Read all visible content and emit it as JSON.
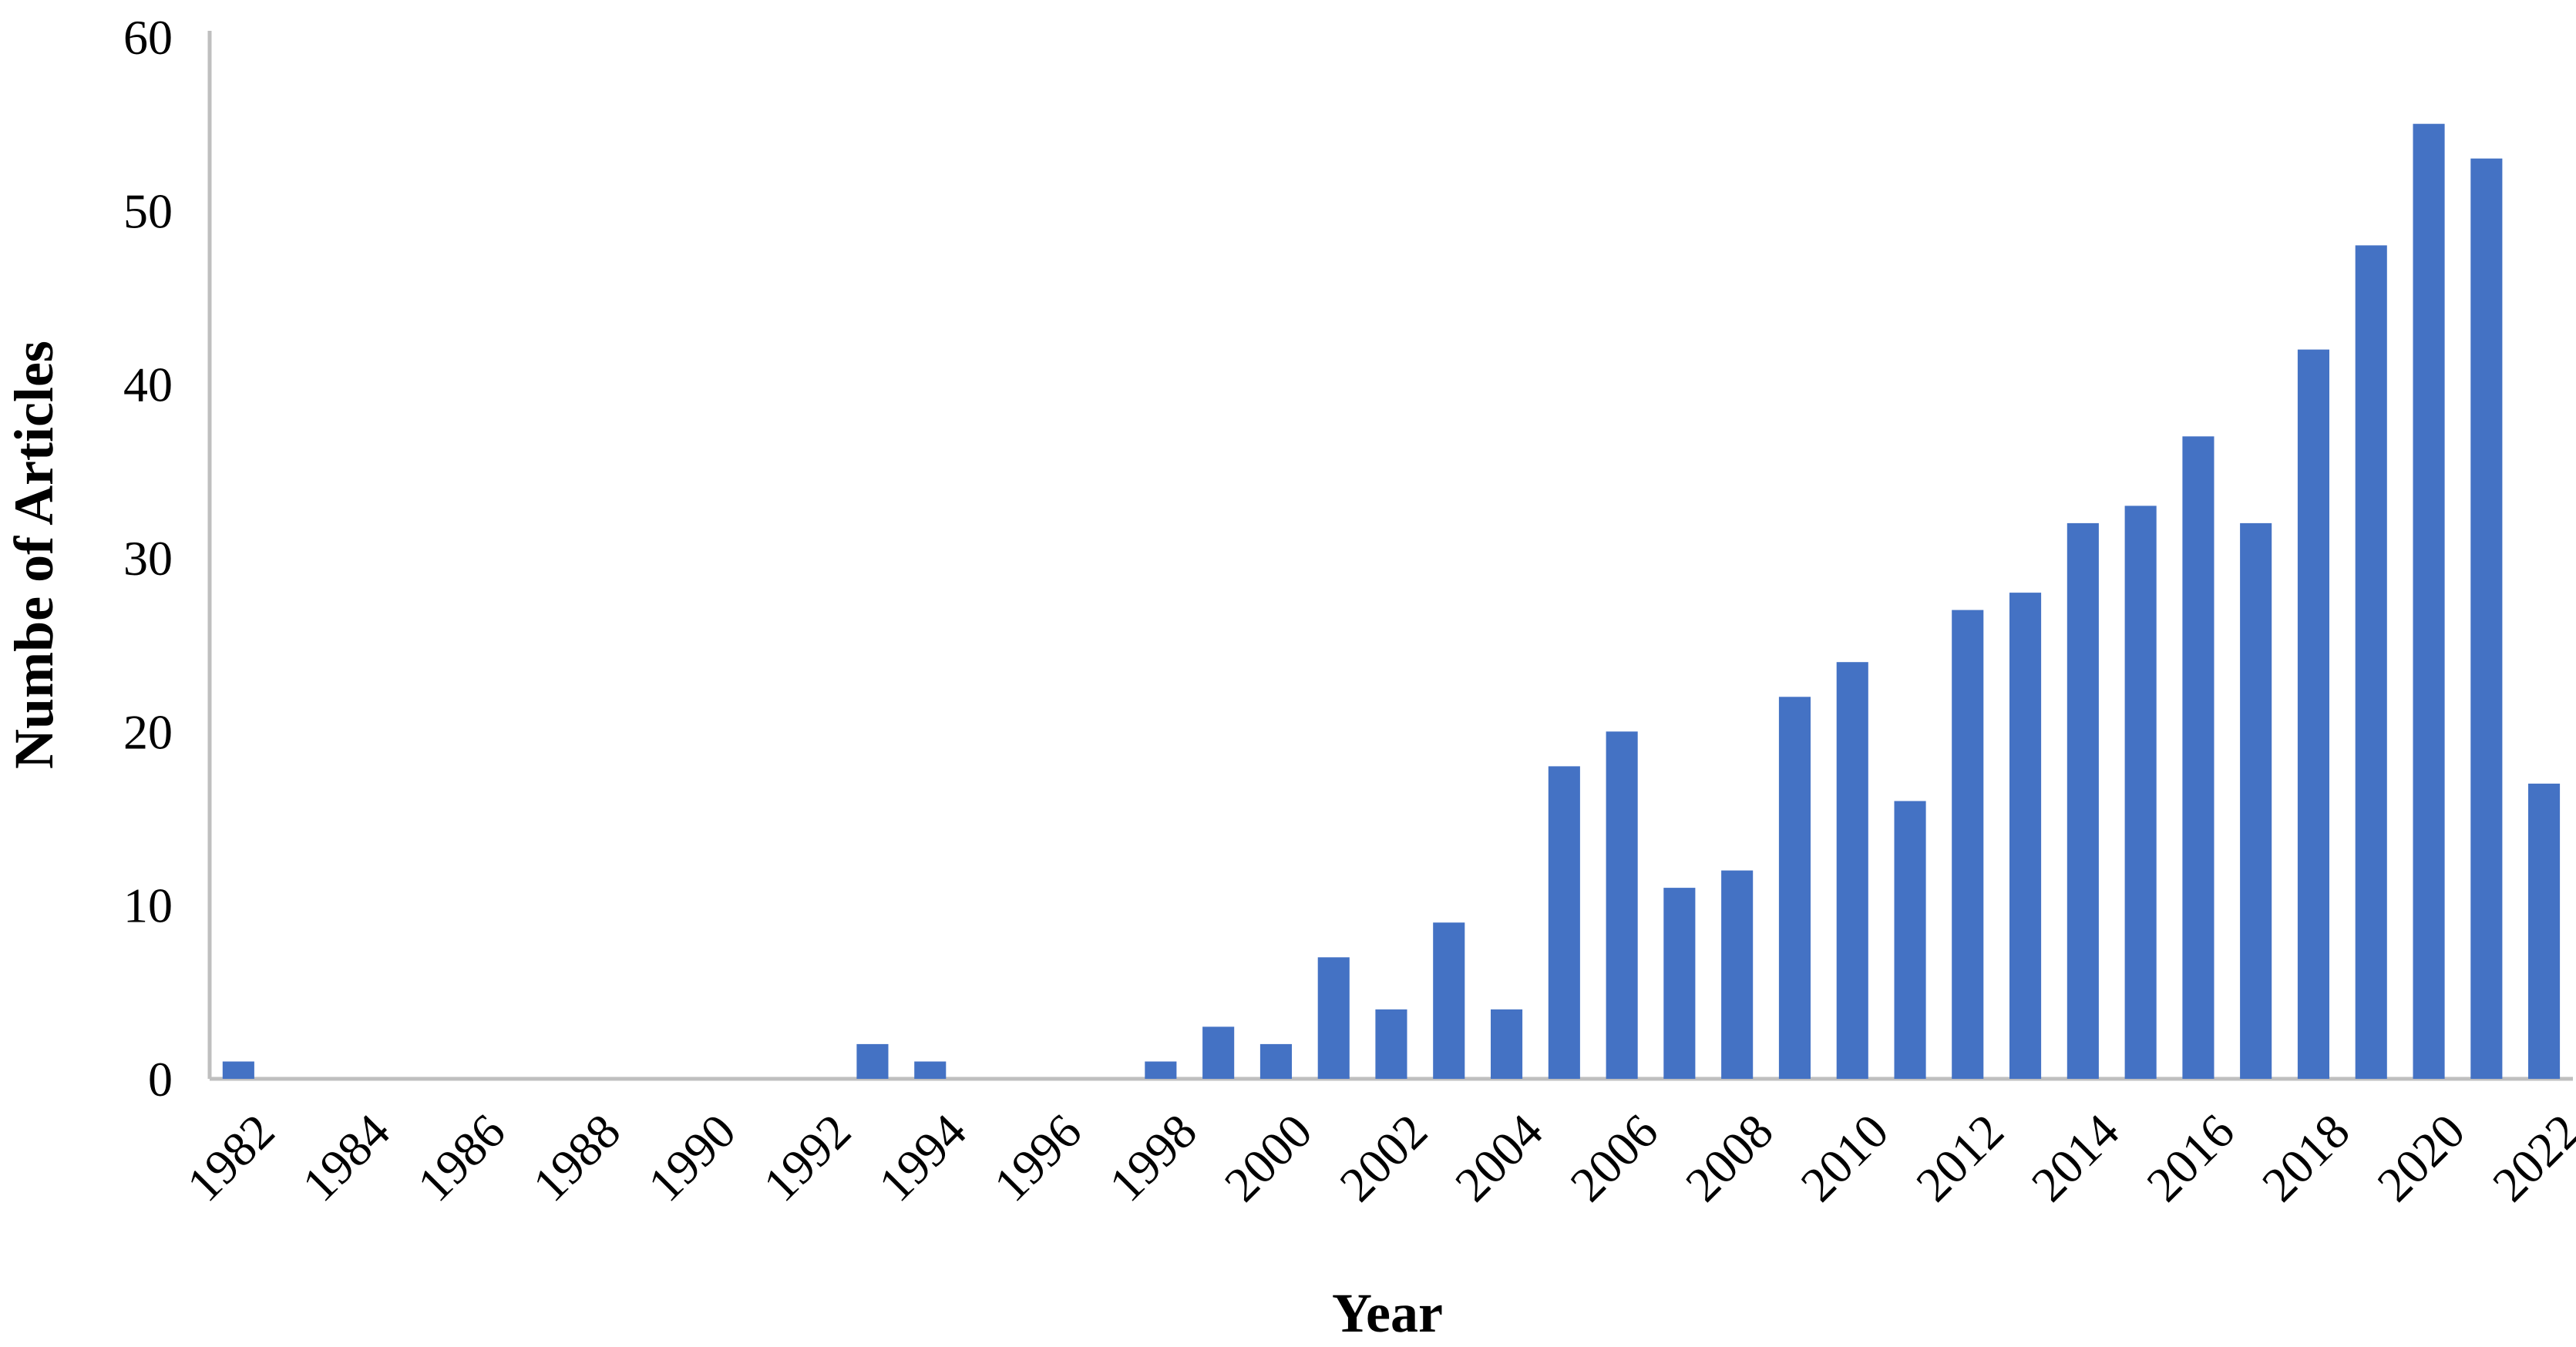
{
  "chart_data": {
    "type": "bar",
    "xlabel": "Year",
    "ylabel": "Numbe of Articles",
    "ylim": [
      0,
      60
    ],
    "yticks": [
      0,
      10,
      20,
      30,
      40,
      50,
      60
    ],
    "x": [
      1982,
      1983,
      1984,
      1985,
      1986,
      1987,
      1988,
      1989,
      1990,
      1991,
      1992,
      1993,
      1994,
      1995,
      1996,
      1997,
      1998,
      1999,
      2000,
      2001,
      2002,
      2003,
      2004,
      2005,
      2006,
      2007,
      2008,
      2009,
      2010,
      2011,
      2012,
      2013,
      2014,
      2015,
      2016,
      2017,
      2018,
      2019,
      2020,
      2021,
      2022
    ],
    "xtick_labels": [
      "1982",
      "1984",
      "1986",
      "1988",
      "1990",
      "1992",
      "1994",
      "1996",
      "1998",
      "2000",
      "2002",
      "2004",
      "2006",
      "2008",
      "2010",
      "2012",
      "2014",
      "2016",
      "2018",
      "2020",
      "2022"
    ],
    "values": [
      1,
      0,
      0,
      0,
      0,
      0,
      0,
      0,
      0,
      0,
      0,
      2,
      1,
      0,
      0,
      0,
      1,
      3,
      2,
      7,
      4,
      9,
      4,
      18,
      20,
      11,
      12,
      22,
      24,
      16,
      27,
      28,
      32,
      33,
      37,
      32,
      42,
      48,
      55,
      53,
      17
    ],
    "bar_color": "#4472C4",
    "grid": false,
    "legend": "none"
  }
}
